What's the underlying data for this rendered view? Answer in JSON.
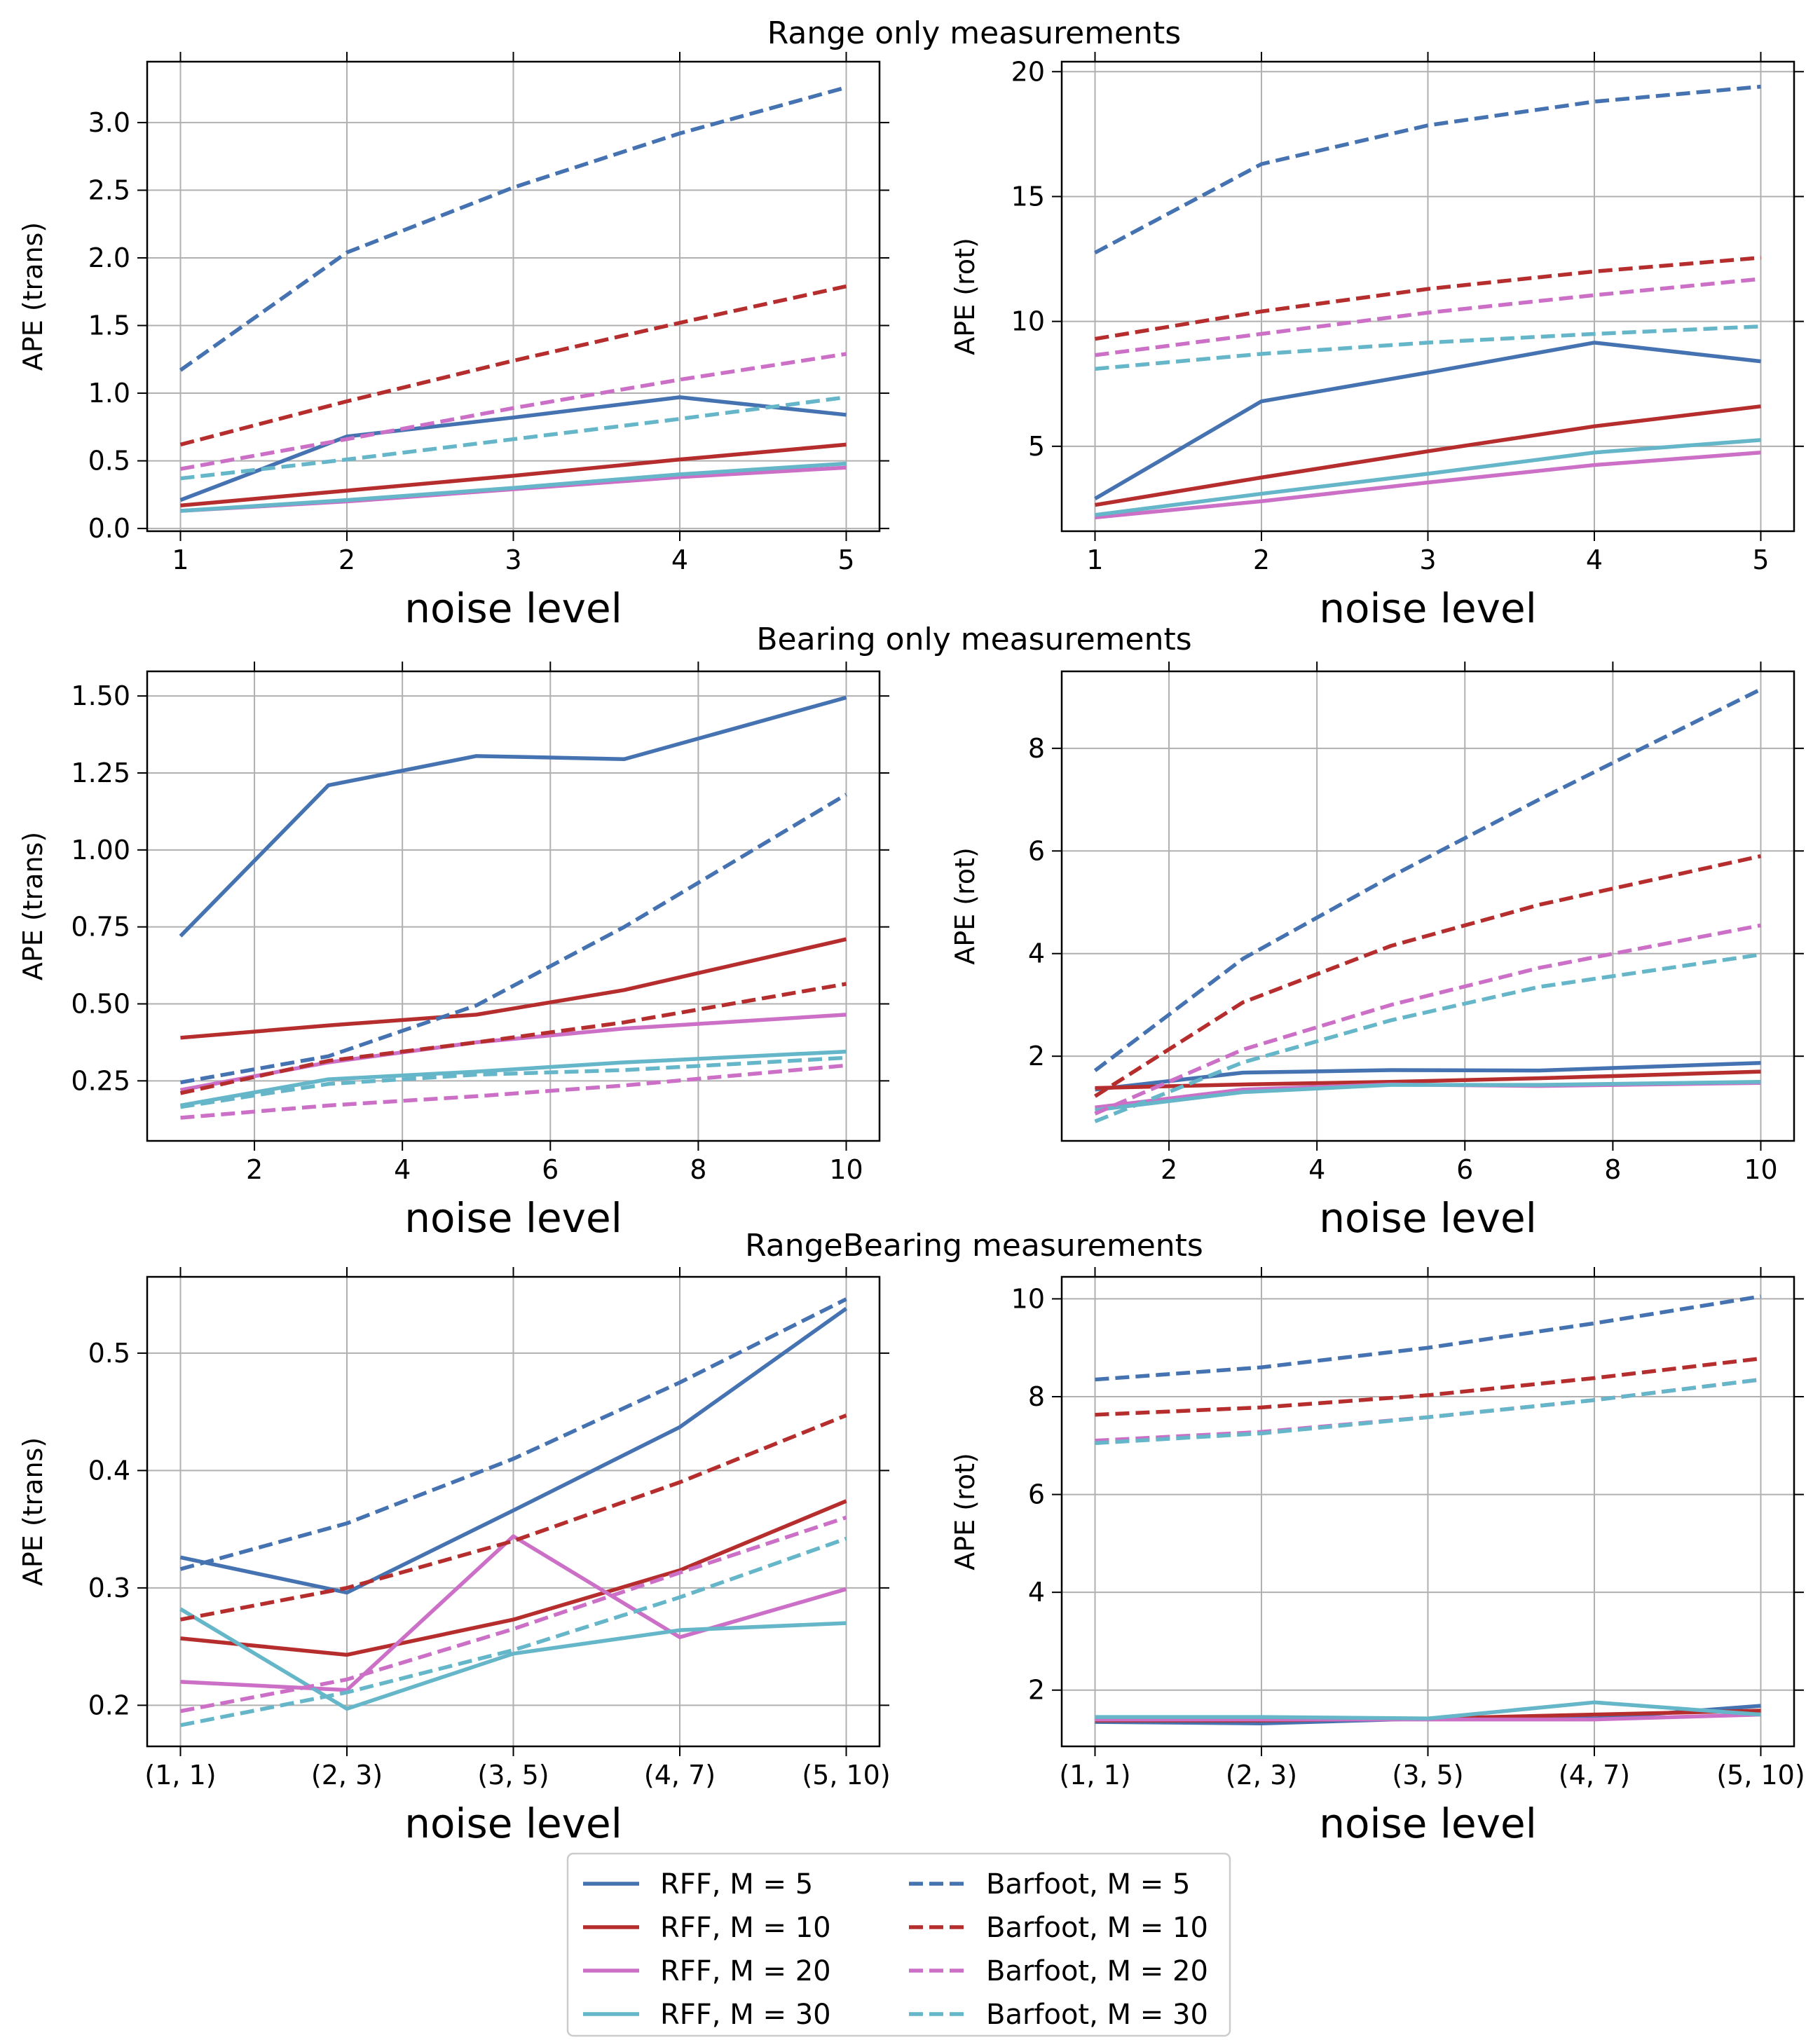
{
  "figure": {
    "row_titles": [
      "Range only measurements",
      "Bearing only measurements",
      "RangeBearing measurements"
    ]
  },
  "legend": {
    "entries": [
      {
        "label": "RFF, M = 5",
        "color": "#4572b0",
        "style": "solid"
      },
      {
        "label": "RFF, M = 10",
        "color": "#b62d2d",
        "style": "solid"
      },
      {
        "label": "RFF, M = 20",
        "color": "#cc6fc7",
        "style": "solid"
      },
      {
        "label": "RFF, M = 30",
        "color": "#65b6c9",
        "style": "solid"
      },
      {
        "label": "Barfoot, M = 5",
        "color": "#4572b0",
        "style": "dashed"
      },
      {
        "label": "Barfoot, M = 10",
        "color": "#b62d2d",
        "style": "dashed"
      },
      {
        "label": "Barfoot, M = 20",
        "color": "#cc6fc7",
        "style": "dashed"
      },
      {
        "label": "Barfoot, M = 30",
        "color": "#65b6c9",
        "style": "dashed"
      }
    ]
  },
  "chart_data": [
    {
      "type": "line",
      "title": "Range only measurements",
      "xlabel": "noise level",
      "ylabel": "APE (trans)",
      "x": [
        1,
        2,
        3,
        4,
        5
      ],
      "xlim": [
        0.8,
        5.2
      ],
      "ylim": [
        -0.02,
        3.45
      ],
      "xticks": [
        1,
        2,
        3,
        4,
        5
      ],
      "xtick_labels": [
        "1",
        "2",
        "3",
        "4",
        "5"
      ],
      "yticks": [
        0,
        0.5,
        1.0,
        1.5,
        2.0,
        2.5,
        3.0
      ],
      "ytick_labels": [
        "0.0",
        "0.5",
        "1.0",
        "1.5",
        "2.0",
        "2.5",
        "3.0"
      ],
      "grid": true,
      "series": [
        {
          "name": "RFF, M = 5",
          "values": [
            0.21,
            0.68,
            0.82,
            0.97,
            0.84
          ]
        },
        {
          "name": "RFF, M = 10",
          "values": [
            0.17,
            0.28,
            0.39,
            0.51,
            0.62
          ]
        },
        {
          "name": "RFF, M = 20",
          "values": [
            0.13,
            0.2,
            0.29,
            0.38,
            0.45
          ]
        },
        {
          "name": "RFF, M = 30",
          "values": [
            0.13,
            0.21,
            0.3,
            0.4,
            0.48
          ]
        },
        {
          "name": "Barfoot, M = 5",
          "values": [
            1.17,
            2.04,
            2.52,
            2.92,
            3.26
          ]
        },
        {
          "name": "Barfoot, M = 10",
          "values": [
            0.62,
            0.94,
            1.24,
            1.52,
            1.79
          ]
        },
        {
          "name": "Barfoot, M = 20",
          "values": [
            0.44,
            0.66,
            0.89,
            1.1,
            1.29
          ]
        },
        {
          "name": "Barfoot, M = 30",
          "values": [
            0.37,
            0.51,
            0.66,
            0.81,
            0.97
          ]
        }
      ]
    },
    {
      "type": "line",
      "title": "Range only measurements",
      "xlabel": "noise level",
      "ylabel": "APE (rot)",
      "x": [
        1,
        2,
        3,
        4,
        5
      ],
      "xlim": [
        0.8,
        5.2
      ],
      "ylim": [
        1.6,
        20.4
      ],
      "xticks": [
        1,
        2,
        3,
        4,
        5
      ],
      "xtick_labels": [
        "1",
        "2",
        "3",
        "4",
        "5"
      ],
      "yticks": [
        5,
        10,
        15,
        20
      ],
      "ytick_labels": [
        "5",
        "10",
        "15",
        "20"
      ],
      "grid": true,
      "series": [
        {
          "name": "RFF, M = 5",
          "values": [
            2.9,
            6.8,
            7.95,
            9.15,
            8.4
          ]
        },
        {
          "name": "RFF, M = 10",
          "values": [
            2.65,
            3.75,
            4.8,
            5.8,
            6.6
          ]
        },
        {
          "name": "RFF, M = 20",
          "values": [
            2.15,
            2.8,
            3.55,
            4.25,
            4.75
          ]
        },
        {
          "name": "RFF, M = 30",
          "values": [
            2.25,
            3.1,
            3.9,
            4.75,
            5.25
          ]
        },
        {
          "name": "Barfoot, M = 5",
          "values": [
            12.75,
            16.3,
            17.85,
            18.8,
            19.4
          ]
        },
        {
          "name": "Barfoot, M = 10",
          "values": [
            9.3,
            10.4,
            11.3,
            12.0,
            12.55
          ]
        },
        {
          "name": "Barfoot, M = 20",
          "values": [
            8.65,
            9.5,
            10.35,
            11.05,
            11.7
          ]
        },
        {
          "name": "Barfoot, M = 30",
          "values": [
            8.1,
            8.7,
            9.15,
            9.5,
            9.8
          ]
        }
      ]
    },
    {
      "type": "line",
      "title": "Bearing only measurements",
      "xlabel": "noise level",
      "ylabel": "APE (trans)",
      "x": [
        1,
        3,
        5,
        7,
        10
      ],
      "xlim": [
        0.55,
        10.45
      ],
      "ylim": [
        0.055,
        1.58
      ],
      "xticks": [
        2,
        4,
        6,
        8,
        10
      ],
      "xtick_labels": [
        "2",
        "4",
        "6",
        "8",
        "10"
      ],
      "yticks": [
        0.25,
        0.5,
        0.75,
        1.0,
        1.25,
        1.5
      ],
      "ytick_labels": [
        "0.25",
        "0.50",
        "0.75",
        "1.00",
        "1.25",
        "1.50"
      ],
      "grid": true,
      "series": [
        {
          "name": "RFF, M = 5",
          "values": [
            0.72,
            1.21,
            1.305,
            1.295,
            1.495
          ]
        },
        {
          "name": "RFF, M = 10",
          "values": [
            0.39,
            0.43,
            0.465,
            0.545,
            0.71
          ]
        },
        {
          "name": "RFF, M = 20",
          "values": [
            0.22,
            0.31,
            0.375,
            0.42,
            0.465
          ]
        },
        {
          "name": "RFF, M = 30",
          "values": [
            0.17,
            0.255,
            0.28,
            0.31,
            0.345
          ]
        },
        {
          "name": "Barfoot, M = 5",
          "values": [
            0.245,
            0.33,
            0.495,
            0.75,
            1.18
          ]
        },
        {
          "name": "Barfoot, M = 10",
          "values": [
            0.21,
            0.315,
            0.375,
            0.44,
            0.565
          ]
        },
        {
          "name": "Barfoot, M = 20",
          "values": [
            0.13,
            0.17,
            0.2,
            0.235,
            0.3
          ]
        },
        {
          "name": "Barfoot, M = 30",
          "values": [
            0.165,
            0.24,
            0.27,
            0.285,
            0.325
          ]
        }
      ]
    },
    {
      "type": "line",
      "title": "Bearing only measurements",
      "xlabel": "noise level",
      "ylabel": "APE (rot)",
      "x": [
        1,
        3,
        5,
        7,
        10
      ],
      "xlim": [
        0.55,
        10.45
      ],
      "ylim": [
        0.35,
        9.5
      ],
      "xticks": [
        2,
        4,
        6,
        8,
        10
      ],
      "xtick_labels": [
        "2",
        "4",
        "6",
        "8",
        "10"
      ],
      "yticks": [
        2,
        4,
        6,
        8
      ],
      "ytick_labels": [
        "2",
        "4",
        "6",
        "8"
      ],
      "grid": true,
      "series": [
        {
          "name": "RFF, M = 5",
          "values": [
            1.35,
            1.68,
            1.73,
            1.72,
            1.87
          ]
        },
        {
          "name": "RFF, M = 10",
          "values": [
            1.38,
            1.45,
            1.5,
            1.57,
            1.7
          ]
        },
        {
          "name": "RFF, M = 20",
          "values": [
            1.0,
            1.35,
            1.45,
            1.42,
            1.48
          ]
        },
        {
          "name": "RFF, M = 30",
          "values": [
            0.95,
            1.3,
            1.44,
            1.44,
            1.5
          ]
        },
        {
          "name": "Barfoot, M = 5",
          "values": [
            1.72,
            3.9,
            5.5,
            7.0,
            9.15
          ]
        },
        {
          "name": "Barfoot, M = 10",
          "values": [
            1.22,
            3.05,
            4.15,
            4.95,
            5.9
          ]
        },
        {
          "name": "Barfoot, M = 20",
          "values": [
            0.88,
            2.13,
            3.0,
            3.72,
            4.55
          ]
        },
        {
          "name": "Barfoot, M = 30",
          "values": [
            0.73,
            1.88,
            2.7,
            3.35,
            3.98
          ]
        }
      ]
    },
    {
      "type": "line",
      "title": "RangeBearing measurements",
      "xlabel": "noise level",
      "ylabel": "APE (trans)",
      "x": [
        1,
        2,
        3,
        4,
        5
      ],
      "xlim": [
        0.8,
        5.2
      ],
      "ylim": [
        0.165,
        0.565
      ],
      "xticks": [
        1,
        2,
        3,
        4,
        5
      ],
      "xtick_labels": [
        "(1, 1)",
        "(2, 3)",
        "(3, 5)",
        "(4, 7)",
        "(5, 10)"
      ],
      "yticks": [
        0.2,
        0.3,
        0.4,
        0.5
      ],
      "ytick_labels": [
        "0.2",
        "0.3",
        "0.4",
        "0.5"
      ],
      "grid": true,
      "series": [
        {
          "name": "RFF, M = 5",
          "values": [
            0.326,
            0.296,
            0.366,
            0.437,
            0.538
          ]
        },
        {
          "name": "RFF, M = 10",
          "values": [
            0.257,
            0.243,
            0.273,
            0.315,
            0.374
          ]
        },
        {
          "name": "RFF, M = 20",
          "values": [
            0.22,
            0.213,
            0.344,
            0.258,
            0.299
          ]
        },
        {
          "name": "RFF, M = 30",
          "values": [
            0.282,
            0.197,
            0.244,
            0.264,
            0.27
          ]
        },
        {
          "name": "Barfoot, M = 5",
          "values": [
            0.316,
            0.355,
            0.41,
            0.475,
            0.546
          ]
        },
        {
          "name": "Barfoot, M = 10",
          "values": [
            0.273,
            0.3,
            0.34,
            0.39,
            0.447
          ]
        },
        {
          "name": "Barfoot, M = 20",
          "values": [
            0.195,
            0.222,
            0.265,
            0.313,
            0.36
          ]
        },
        {
          "name": "Barfoot, M = 30",
          "values": [
            0.183,
            0.211,
            0.247,
            0.292,
            0.342
          ]
        }
      ]
    },
    {
      "type": "line",
      "title": "RangeBearing measurements",
      "xlabel": "noise level",
      "ylabel": "APE (rot)",
      "x": [
        1,
        2,
        3,
        4,
        5
      ],
      "xlim": [
        0.8,
        5.2
      ],
      "ylim": [
        0.85,
        10.45
      ],
      "xticks": [
        1,
        2,
        3,
        4,
        5
      ],
      "xtick_labels": [
        "(1, 1)",
        "(2, 3)",
        "(3, 5)",
        "(4, 7)",
        "(5, 10)"
      ],
      "yticks": [
        2,
        4,
        6,
        8,
        10
      ],
      "ytick_labels": [
        "2",
        "4",
        "6",
        "8",
        "10"
      ],
      "grid": true,
      "series": [
        {
          "name": "RFF, M = 5",
          "values": [
            1.35,
            1.32,
            1.42,
            1.42,
            1.68
          ]
        },
        {
          "name": "RFF, M = 10",
          "values": [
            1.38,
            1.38,
            1.42,
            1.5,
            1.58
          ]
        },
        {
          "name": "RFF, M = 20",
          "values": [
            1.4,
            1.4,
            1.4,
            1.4,
            1.5
          ]
        },
        {
          "name": "RFF, M = 30",
          "values": [
            1.45,
            1.45,
            1.42,
            1.75,
            1.5
          ]
        },
        {
          "name": "Barfoot, M = 5",
          "values": [
            8.35,
            8.6,
            9.0,
            9.5,
            10.05
          ]
        },
        {
          "name": "Barfoot, M = 10",
          "values": [
            7.63,
            7.78,
            8.03,
            8.38,
            8.78
          ]
        },
        {
          "name": "Barfoot, M = 20",
          "values": [
            7.1,
            7.28,
            7.58,
            7.93,
            8.35
          ]
        },
        {
          "name": "Barfoot, M = 30",
          "values": [
            7.05,
            7.25,
            7.58,
            7.93,
            8.35
          ]
        }
      ]
    }
  ]
}
